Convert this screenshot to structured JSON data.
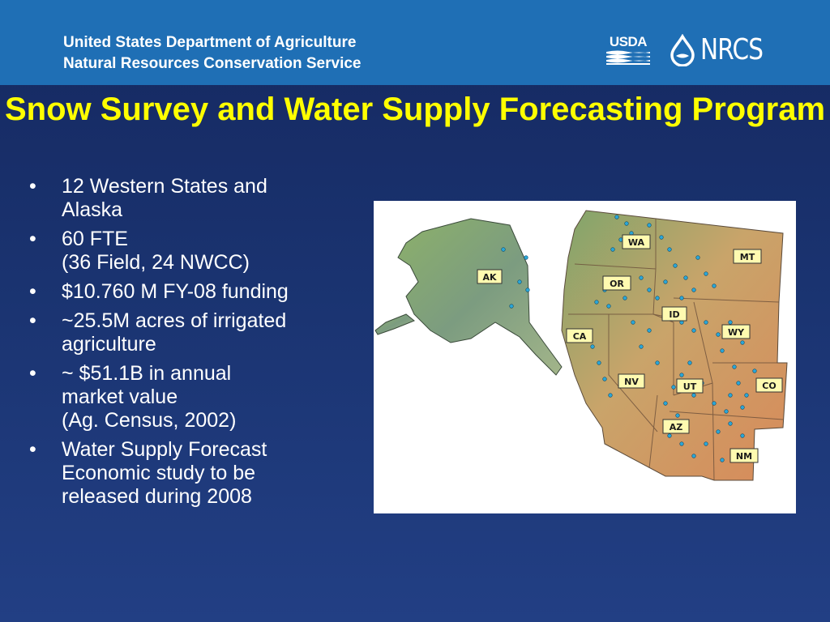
{
  "header": {
    "agency_line1": "United States Department of Agriculture",
    "agency_line2": "Natural Resources Conservation Service",
    "usda_logo_text": "USDA",
    "nrcs_logo_text": "NRCS",
    "background_color": "#1f6fb5"
  },
  "title": "Snow Survey and Water Supply Forecasting Program",
  "title_color": "#ffff00",
  "bullets": [
    "12 Western States and\nAlaska",
    "60 FTE\n(36 Field, 24 NWCC)",
    "$10.760 M FY-08 funding",
    "~25.5M acres of irrigated\nagriculture",
    "~ $51.1B in annual\nmarket value\n(Ag. Census, 2002)",
    "Water Supply Forecast\nEconomic study to be\nreleased during 2008"
  ],
  "bullet_glyph": "•",
  "map": {
    "labels": [
      "AK",
      "WA",
      "MT",
      "OR",
      "ID",
      "WY",
      "CA",
      "NV",
      "UT",
      "CO",
      "AZ",
      "NM"
    ],
    "label_color": "#fffab0",
    "station_color": "#2aa7d8"
  }
}
